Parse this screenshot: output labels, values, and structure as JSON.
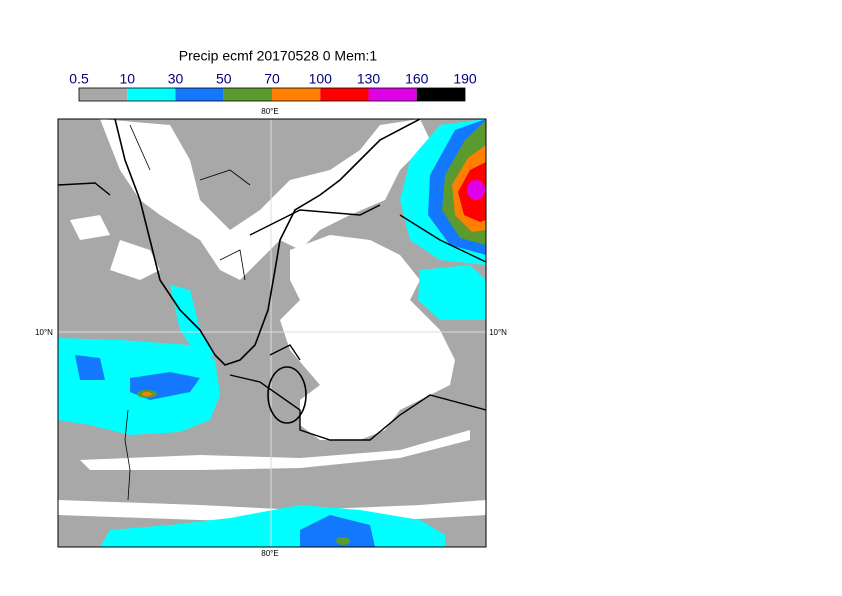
{
  "title": "Precip ecmf 20170528 0 Mem:1",
  "colorbar": {
    "levels": [
      0.5,
      10,
      30,
      50,
      70,
      100,
      130,
      160,
      190
    ],
    "colors": [
      "#a8a8a8",
      "#00ffff",
      "#1478ff",
      "#5a9a2e",
      "#ff8000",
      "#ff0000",
      "#e000e8",
      "#000000"
    ]
  },
  "axes": {
    "top": "80°E",
    "bottom": "80°E",
    "left": "10°N",
    "right": "10°N"
  }
}
